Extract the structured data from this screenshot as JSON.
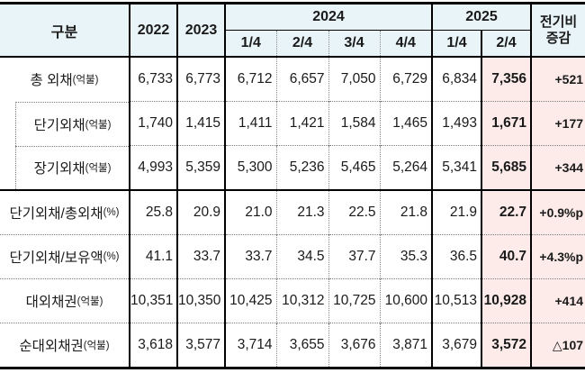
{
  "table": {
    "header": {
      "corner": "구분",
      "years": [
        "2022",
        "2023"
      ],
      "groups": [
        {
          "label": "2024",
          "quarters": [
            "1/4",
            "2/4",
            "3/4",
            "4/4"
          ]
        },
        {
          "label": "2025",
          "quarters": [
            "1/4",
            "2/4"
          ]
        }
      ],
      "change_lines": [
        "전기비",
        "증감"
      ]
    },
    "rows": [
      {
        "label": "총 외채",
        "unit": "(억불)",
        "indent": false,
        "values": [
          "6,733",
          "6,773",
          "6,712",
          "6,657",
          "7,050",
          "6,729",
          "6,834",
          "7,356",
          "+521"
        ]
      },
      {
        "label": "단기외채",
        "unit": "(억불)",
        "indent": true,
        "values": [
          "1,740",
          "1,415",
          "1,411",
          "1,421",
          "1,584",
          "1,465",
          "1,493",
          "1,671",
          "+177"
        ]
      },
      {
        "label": "장기외채",
        "unit": "(억불)",
        "indent": true,
        "values": [
          "4,993",
          "5,359",
          "5,300",
          "5,236",
          "5,465",
          "5,264",
          "5,341",
          "5,685",
          "+344"
        ]
      },
      {
        "label": "단기외채/총외채",
        "unit": "(%)",
        "indent": false,
        "values": [
          "25.8",
          "20.9",
          "21.0",
          "21.3",
          "22.5",
          "21.8",
          "21.9",
          "22.7",
          "+0.9%p"
        ]
      },
      {
        "label": "단기외채/보유액",
        "unit": "(%)",
        "indent": false,
        "values": [
          "41.1",
          "33.7",
          "33.7",
          "34.5",
          "37.7",
          "35.3",
          "36.5",
          "40.7",
          "+4.3%p"
        ]
      },
      {
        "label": "대외채권",
        "unit": "(억불)",
        "indent": false,
        "values": [
          "10,351",
          "10,350",
          "10,425",
          "10,312",
          "10,725",
          "10,600",
          "10,513",
          "10,928",
          "+414"
        ]
      },
      {
        "label": "순대외채권",
        "unit": "(억불)",
        "indent": false,
        "values": [
          "3,618",
          "3,577",
          "3,714",
          "3,655",
          "3,676",
          "3,871",
          "3,679",
          "3,572",
          "△107"
        ]
      }
    ],
    "colors": {
      "header_bg": "#e9f4f8",
      "highlight_bg": "#fcebe8",
      "border": "#000000"
    }
  },
  "chart_data": {
    "type": "table",
    "title": "대외채무 통계표 (External debt statistics)",
    "columns": [
      "구분",
      "2022",
      "2023",
      "2024 1/4",
      "2024 2/4",
      "2024 3/4",
      "2024 4/4",
      "2025 1/4",
      "2025 2/4",
      "전기비 증감"
    ],
    "rows": [
      [
        "총 외채(억불)",
        6733,
        6773,
        6712,
        6657,
        7050,
        6729,
        6834,
        7356,
        "+521"
      ],
      [
        "단기외채(억불)",
        1740,
        1415,
        1411,
        1421,
        1584,
        1465,
        1493,
        1671,
        "+177"
      ],
      [
        "장기외채(억불)",
        4993,
        5359,
        5300,
        5236,
        5465,
        5264,
        5341,
        5685,
        "+344"
      ],
      [
        "단기외채/총외채(%)",
        25.8,
        20.9,
        21.0,
        21.3,
        22.5,
        21.8,
        21.9,
        22.7,
        "+0.9%p"
      ],
      [
        "단기외채/보유액(%)",
        41.1,
        33.7,
        33.7,
        34.5,
        37.7,
        35.3,
        36.5,
        40.7,
        "+4.3%p"
      ],
      [
        "대외채권(억불)",
        10351,
        10350,
        10425,
        10312,
        10725,
        10600,
        10513,
        10928,
        "+414"
      ],
      [
        "순대외채권(억불)",
        3618,
        3577,
        3714,
        3655,
        3676,
        3871,
        3679,
        3572,
        "△107"
      ]
    ],
    "layout_hints": {
      "highlighted_column": "2025 2/4",
      "highlighted_column_bg": "#fcebe8",
      "header_bg": "#e9f4f8"
    }
  }
}
